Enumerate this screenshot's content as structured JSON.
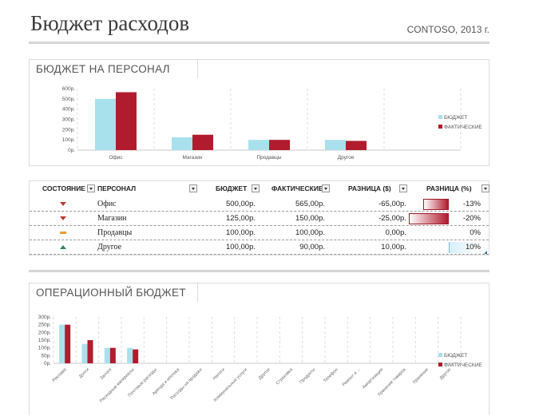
{
  "header": {
    "title": "Бюджет расходов",
    "subtitle": "CONTOSO, 2013 г."
  },
  "personnel_budget": {
    "section_title": "БЮДЖЕТ НА ПЕРСОНАЛ",
    "legend": [
      "БЮДЖЕТ",
      "ФАКТИЧЕСКИЕ"
    ],
    "table": {
      "headers": [
        "СОСТОЯНИЕ",
        "ПЕРСОНАЛ",
        "БЮДЖЕТ",
        "ФАКТИЧЕСКИЕ",
        "РАЗНИЦА ($)",
        "РАЗНИЦА (%)"
      ],
      "rows": [
        {
          "status": "down",
          "name": "Офис",
          "budget": "500,00р.",
          "actual": "565,00р.",
          "diff": "-65,00р.",
          "pct": "-13%",
          "pct_value": -13
        },
        {
          "status": "down",
          "name": "Магазин",
          "budget": "125,00р.",
          "actual": "150,00р.",
          "diff": "-25,00р.",
          "pct": "-20%",
          "pct_value": -20
        },
        {
          "status": "flat",
          "name": "Продавцы",
          "budget": "100,00р.",
          "actual": "100,00р.",
          "diff": "0,00р.",
          "pct": "0%",
          "pct_value": 0
        },
        {
          "status": "up",
          "name": "Другое",
          "budget": "100,00р.",
          "actual": "90,00р.",
          "diff": "10,00р.",
          "pct": "10%",
          "pct_value": 10
        }
      ]
    }
  },
  "operational_budget": {
    "section_title": "ОПЕРАЦИОННЫЙ БЮДЖЕТ"
  },
  "colors": {
    "budget": "#a8e1ec",
    "actual": "#b01c2e",
    "grid": "#dddddd"
  },
  "chart_data": [
    {
      "type": "bar",
      "categories": [
        "Офис",
        "Магазин",
        "Продавцы",
        "Другое",
        ""
      ],
      "series": [
        {
          "name": "БЮДЖЕТ",
          "values": [
            500,
            125,
            100,
            100,
            null
          ]
        },
        {
          "name": "ФАКТИЧЕСКИЕ",
          "values": [
            565,
            150,
            100,
            90,
            null
          ]
        }
      ],
      "yticks": [
        "0р.",
        "100р.",
        "200р.",
        "300р.",
        "400р.",
        "500р.",
        "600р."
      ],
      "ylim": [
        0,
        600
      ],
      "legend_position": "right",
      "grid": "dashed vertical"
    },
    {
      "type": "bar",
      "categories": [
        "Реклама",
        "Долги",
        "Залоги",
        "Расходные материалы",
        "Почтовые расходы",
        "Аренда и ипотека",
        "Расходы на продажи",
        "Налоги",
        "Коммунальные услуги",
        "Другое",
        "Страховка",
        "Продукты",
        "Телефон",
        "Ремонт и ...",
        "Амортизация",
        "Хранение товаров",
        "Хранение",
        "Другое"
      ],
      "series": [
        {
          "name": "БЮДЖЕТ",
          "values": [
            250,
            125,
            100,
            100,
            null,
            null,
            null,
            null,
            null,
            null,
            null,
            null,
            null,
            null,
            null,
            null,
            null,
            null
          ]
        },
        {
          "name": "ФАКТИЧЕСКИЕ",
          "values": [
            250,
            150,
            100,
            90,
            null,
            null,
            null,
            null,
            null,
            null,
            null,
            null,
            null,
            null,
            null,
            null,
            null,
            null
          ]
        }
      ],
      "yticks": [
        "0р.",
        "50р.",
        "100р.",
        "150р.",
        "200р.",
        "250р.",
        "300р."
      ],
      "ylim": [
        0,
        300
      ],
      "legend_position": "right",
      "grid": "dashed vertical"
    }
  ]
}
